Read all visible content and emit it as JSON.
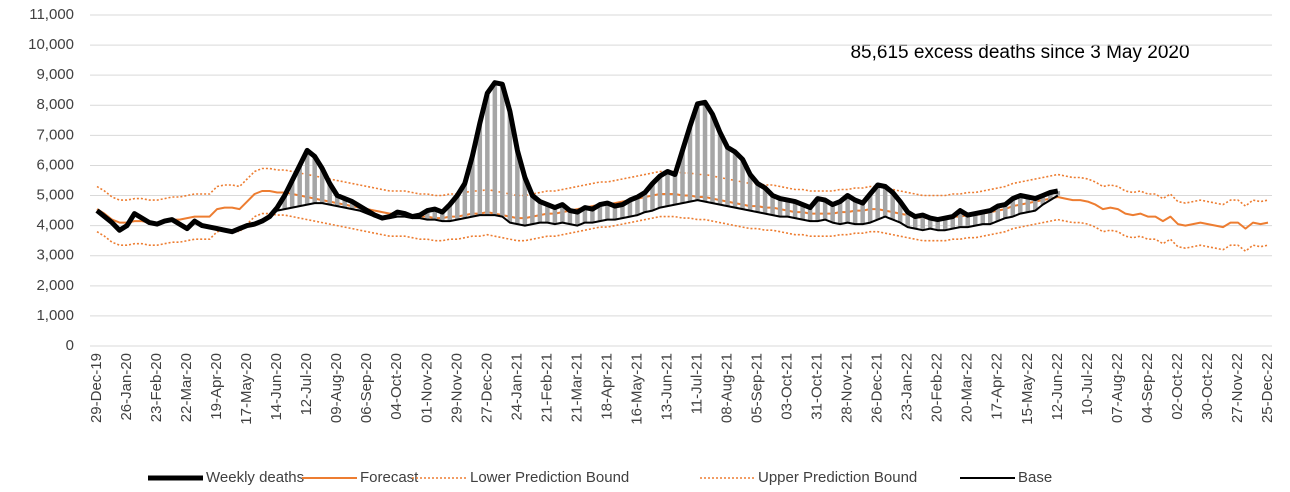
{
  "chart_data": {
    "type": "line",
    "annotation": "85,615 excess deaths since 3 May 2020",
    "categories": [
      "29-Dec-19",
      null,
      null,
      null,
      "26-Jan-20",
      null,
      null,
      null,
      "23-Feb-20",
      null,
      null,
      null,
      "22-Mar-20",
      null,
      null,
      null,
      "19-Apr-20",
      null,
      null,
      null,
      "17-May-20",
      null,
      null,
      null,
      "14-Jun-20",
      null,
      null,
      null,
      "12-Jul-20",
      null,
      null,
      null,
      "09-Aug-20",
      null,
      null,
      null,
      "06-Sep-20",
      null,
      null,
      null,
      "04-Oct-20",
      null,
      null,
      null,
      "01-Nov-20",
      null,
      null,
      null,
      "29-Nov-20",
      null,
      null,
      null,
      "27-Dec-20",
      null,
      null,
      null,
      "24-Jan-21",
      null,
      null,
      null,
      "21-Feb-21",
      null,
      null,
      null,
      "21-Mar-21",
      null,
      null,
      null,
      "18-Apr-21",
      null,
      null,
      null,
      "16-May-21",
      null,
      null,
      null,
      "13-Jun-21",
      null,
      null,
      null,
      "11-Jul-21",
      null,
      null,
      null,
      "08-Aug-21",
      null,
      null,
      null,
      "05-Sep-21",
      null,
      null,
      null,
      "03-Oct-21",
      null,
      null,
      null,
      "31-Oct-21",
      null,
      null,
      null,
      "28-Nov-21",
      null,
      null,
      null,
      "26-Dec-21",
      null,
      null,
      null,
      "23-Jan-22",
      null,
      null,
      null,
      "20-Feb-22",
      null,
      null,
      null,
      "20-Mar-22",
      null,
      null,
      null,
      "17-Apr-22",
      null,
      null,
      null,
      "15-May-22",
      null,
      null,
      null,
      "12-Jun-22",
      null,
      null,
      null,
      "10-Jul-22",
      null,
      null,
      null,
      "07-Aug-22",
      null,
      null,
      null,
      "04-Sep-22",
      null,
      null,
      null,
      "02-Oct-22",
      null,
      null,
      null,
      "30-Oct-22",
      null,
      null,
      null,
      "27-Nov-22",
      null,
      null,
      null,
      "25-Dec-22"
    ],
    "series": [
      {
        "name": "Weekly deaths",
        "color": "#000000",
        "style": "thick",
        "values": [
          4500,
          4300,
          4100,
          3850,
          4000,
          4400,
          4250,
          4100,
          4050,
          4150,
          4200,
          4050,
          3900,
          4150,
          4000,
          3950,
          3900,
          3850,
          3800,
          3900,
          4000,
          4050,
          4150,
          4300,
          4600,
          5000,
          5500,
          6000,
          6500,
          6300,
          5900,
          5400,
          5000,
          4900,
          4800,
          4650,
          4500,
          4350,
          4250,
          4300,
          4450,
          4400,
          4300,
          4350,
          4500,
          4550,
          4450,
          4700,
          5000,
          5400,
          6300,
          7400,
          8400,
          8750,
          8700,
          7800,
          6500,
          5600,
          5000,
          4800,
          4700,
          4600,
          4700,
          4500,
          4450,
          4600,
          4550,
          4700,
          4750,
          4650,
          4700,
          4850,
          4950,
          5100,
          5400,
          5650,
          5800,
          5700,
          6500,
          7300,
          8050,
          8100,
          7700,
          7100,
          6600,
          6450,
          6200,
          5700,
          5400,
          5250,
          5000,
          4900,
          4850,
          4800,
          4700,
          4600,
          4900,
          4850,
          4700,
          4800,
          5000,
          4850,
          4750,
          5050,
          5350,
          5300,
          5100,
          4800,
          4450,
          4300,
          4350,
          4250,
          4200,
          4250,
          4300,
          4500,
          4350,
          4400,
          4450,
          4500,
          4650,
          4700,
          4900,
          5000,
          4950,
          4900,
          5000,
          5100,
          5150,
          null,
          null,
          null,
          null,
          null,
          null,
          null,
          null,
          null,
          null,
          null,
          null,
          null,
          null,
          null,
          null,
          null,
          null,
          null,
          null,
          null,
          null,
          null,
          null,
          null,
          null,
          null,
          null
        ]
      },
      {
        "name": "Forecast",
        "color": "#ed7d31",
        "style": "solid",
        "values": [
          4550,
          4400,
          4200,
          4100,
          4100,
          4150,
          4150,
          4100,
          4100,
          4150,
          4200,
          4200,
          4250,
          4300,
          4300,
          4300,
          4550,
          4600,
          4600,
          4550,
          4800,
          5050,
          5150,
          5150,
          5100,
          5100,
          5050,
          5000,
          4950,
          4900,
          4850,
          4800,
          4750,
          4700,
          4650,
          4600,
          4550,
          4500,
          4450,
          4400,
          4400,
          4400,
          4350,
          4300,
          4300,
          4250,
          4250,
          4300,
          4300,
          4350,
          4400,
          4400,
          4450,
          4400,
          4350,
          4300,
          4250,
          4250,
          4300,
          4350,
          4400,
          4400,
          4450,
          4500,
          4550,
          4600,
          4650,
          4700,
          4700,
          4750,
          4800,
          4850,
          4900,
          4950,
          5000,
          5050,
          5050,
          5050,
          5000,
          5000,
          4950,
          4950,
          4900,
          4850,
          4800,
          4750,
          4700,
          4650,
          4650,
          4600,
          4600,
          4550,
          4500,
          4450,
          4450,
          4400,
          4400,
          4400,
          4400,
          4450,
          4450,
          4500,
          4500,
          4550,
          4550,
          4500,
          4450,
          4400,
          4350,
          4300,
          4250,
          4250,
          4250,
          4250,
          4300,
          4300,
          4350,
          4350,
          4400,
          4450,
          4500,
          4550,
          4650,
          4700,
          4750,
          4800,
          4850,
          4900,
          4950,
          4900,
          4850,
          4850,
          4800,
          4700,
          4550,
          4600,
          4550,
          4400,
          4350,
          4400,
          4300,
          4300,
          4150,
          4300,
          4050,
          4000,
          4050,
          4100,
          4050,
          4000,
          3950,
          4100,
          4100,
          3900,
          4100,
          4050,
          4100
        ]
      },
      {
        "name": "Lower Prediction Bound",
        "color": "#ed7d31",
        "style": "dotted",
        "values": [
          3800,
          3650,
          3450,
          3350,
          3350,
          3400,
          3400,
          3350,
          3350,
          3400,
          3450,
          3450,
          3500,
          3550,
          3550,
          3550,
          3800,
          3850,
          3850,
          3800,
          4050,
          4300,
          4400,
          4400,
          4350,
          4350,
          4300,
          4250,
          4200,
          4150,
          4100,
          4050,
          4000,
          3950,
          3900,
          3850,
          3800,
          3750,
          3700,
          3650,
          3650,
          3650,
          3600,
          3550,
          3550,
          3500,
          3500,
          3550,
          3550,
          3600,
          3650,
          3650,
          3700,
          3650,
          3600,
          3550,
          3500,
          3500,
          3550,
          3600,
          3650,
          3650,
          3700,
          3750,
          3800,
          3850,
          3900,
          3950,
          3950,
          4000,
          4050,
          4100,
          4150,
          4200,
          4250,
          4300,
          4300,
          4300,
          4250,
          4250,
          4200,
          4200,
          4150,
          4100,
          4050,
          4000,
          3950,
          3900,
          3900,
          3850,
          3850,
          3800,
          3750,
          3700,
          3700,
          3650,
          3650,
          3650,
          3650,
          3700,
          3700,
          3750,
          3750,
          3800,
          3800,
          3750,
          3700,
          3650,
          3600,
          3550,
          3500,
          3500,
          3500,
          3500,
          3550,
          3550,
          3600,
          3600,
          3650,
          3700,
          3750,
          3800,
          3900,
          3950,
          4000,
          4050,
          4100,
          4150,
          4200,
          4150,
          4100,
          4100,
          4050,
          3950,
          3800,
          3850,
          3800,
          3650,
          3600,
          3650,
          3550,
          3550,
          3400,
          3550,
          3300,
          3250,
          3300,
          3350,
          3300,
          3250,
          3200,
          3350,
          3350,
          3150,
          3350,
          3300,
          3350
        ]
      },
      {
        "name": "Upper Prediction Bound",
        "color": "#ed7d31",
        "style": "dotted",
        "values": [
          5300,
          5150,
          4950,
          4850,
          4850,
          4900,
          4900,
          4850,
          4850,
          4900,
          4950,
          4950,
          5000,
          5050,
          5050,
          5050,
          5300,
          5350,
          5350,
          5300,
          5550,
          5800,
          5900,
          5900,
          5850,
          5850,
          5800,
          5750,
          5700,
          5650,
          5600,
          5550,
          5500,
          5450,
          5400,
          5350,
          5300,
          5250,
          5200,
          5150,
          5150,
          5150,
          5100,
          5050,
          5050,
          5000,
          5000,
          5050,
          5050,
          5100,
          5150,
          5150,
          5200,
          5150,
          5100,
          5050,
          5000,
          5000,
          5050,
          5100,
          5150,
          5150,
          5200,
          5250,
          5300,
          5350,
          5400,
          5450,
          5450,
          5500,
          5550,
          5600,
          5650,
          5700,
          5750,
          5800,
          5800,
          5800,
          5750,
          5750,
          5700,
          5700,
          5650,
          5600,
          5550,
          5500,
          5450,
          5400,
          5400,
          5350,
          5350,
          5300,
          5250,
          5200,
          5200,
          5150,
          5150,
          5150,
          5150,
          5200,
          5200,
          5250,
          5250,
          5300,
          5300,
          5250,
          5200,
          5150,
          5100,
          5050,
          5000,
          5000,
          5000,
          5000,
          5050,
          5050,
          5100,
          5100,
          5150,
          5200,
          5250,
          5300,
          5400,
          5450,
          5500,
          5550,
          5600,
          5650,
          5700,
          5650,
          5600,
          5600,
          5550,
          5450,
          5300,
          5350,
          5300,
          5150,
          5100,
          5150,
          5050,
          5050,
          4900,
          5050,
          4800,
          4750,
          4800,
          4850,
          4800,
          4750,
          4700,
          4850,
          4850,
          4650,
          4850,
          4800,
          4850
        ]
      },
      {
        "name": "Base",
        "color": "#000000",
        "style": "solid",
        "values": [
          4500,
          4300,
          4100,
          3850,
          4000,
          4400,
          4250,
          4100,
          4050,
          4150,
          4200,
          4050,
          3900,
          4150,
          4000,
          3950,
          3900,
          3850,
          3800,
          3900,
          4000,
          4050,
          4150,
          4300,
          4500,
          4550,
          4600,
          4650,
          4700,
          4750,
          4750,
          4700,
          4650,
          4600,
          4550,
          4500,
          4400,
          4300,
          4250,
          4250,
          4300,
          4300,
          4250,
          4250,
          4200,
          4200,
          4150,
          4150,
          4200,
          4250,
          4300,
          4350,
          4350,
          4350,
          4300,
          4100,
          4050,
          4000,
          4050,
          4100,
          4100,
          4050,
          4100,
          4050,
          4000,
          4100,
          4100,
          4150,
          4200,
          4200,
          4250,
          4300,
          4350,
          4450,
          4500,
          4600,
          4650,
          4700,
          4750,
          4800,
          4850,
          4800,
          4750,
          4700,
          4650,
          4600,
          4550,
          4500,
          4450,
          4400,
          4350,
          4300,
          4300,
          4250,
          4200,
          4150,
          4150,
          4200,
          4100,
          4050,
          4100,
          4050,
          4050,
          4100,
          4200,
          4300,
          4200,
          4100,
          3950,
          3900,
          3850,
          3900,
          3850,
          3850,
          3900,
          3950,
          3950,
          4000,
          4050,
          4050,
          4150,
          4250,
          4300,
          4400,
          4450,
          4500,
          4700,
          4850,
          5000,
          null,
          null,
          null,
          null,
          null,
          null,
          null,
          null,
          null,
          null,
          null,
          null,
          null,
          null,
          null,
          null,
          null,
          null,
          null,
          null,
          null,
          null,
          null,
          null,
          null,
          null,
          null,
          null
        ]
      }
    ],
    "hatch_color": "#a6a6a6",
    "ylim": [
      0,
      11000
    ],
    "yticks": [
      0,
      {
        "value": 1000,
        "label": "1,000"
      },
      {
        "value": 2000,
        "label": "2,000"
      },
      {
        "value": 3000,
        "label": "3,000"
      },
      {
        "value": 4000,
        "label": "4,000"
      },
      {
        "value": 5000,
        "label": "5,000"
      },
      {
        "value": 6000,
        "label": "6,000"
      },
      {
        "value": 7000,
        "label": "7,000"
      },
      {
        "value": 8000,
        "label": "8,000"
      },
      {
        "value": 9000,
        "label": "9,000"
      },
      {
        "value": 10000,
        "label": "10,000"
      },
      {
        "value": 11000,
        "label": "11,000"
      }
    ],
    "grid": true,
    "legend": "bottom"
  }
}
